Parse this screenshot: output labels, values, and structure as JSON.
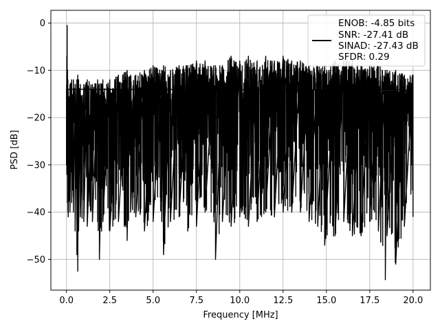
{
  "chart_data": {
    "type": "line",
    "title": "",
    "xlabel": "Frequency [MHz]",
    "ylabel": "PSD [dB]",
    "xlim": [
      -0.9,
      21.0
    ],
    "ylim": [
      -56.5,
      2.7
    ],
    "xticks": [
      0.0,
      2.5,
      5.0,
      7.5,
      10.0,
      12.5,
      15.0,
      17.5,
      20.0
    ],
    "xtick_labels": [
      "0.0",
      "2.5",
      "5.0",
      "7.5",
      "10.0",
      "12.5",
      "15.0",
      "17.5",
      "20.0"
    ],
    "yticks": [
      0,
      -10,
      -20,
      -30,
      -40,
      -50
    ],
    "ytick_labels": [
      "0",
      "−10",
      "−20",
      "−30",
      "−40",
      "−50"
    ],
    "grid": true,
    "legend_position": "top-right",
    "series": [
      {
        "color": "#000000",
        "note_x_range": [
          0,
          20
        ],
        "x": [
          0.0,
          0.02,
          0.04,
          0.06,
          0.08,
          0.1,
          0.2,
          0.3,
          0.4,
          0.5,
          0.6,
          0.65,
          0.7,
          0.8,
          1.0,
          1.2,
          1.5,
          1.8,
          1.9,
          2.1,
          2.5,
          3.0,
          3.5,
          3.7,
          4.0,
          4.5,
          5.0,
          5.5,
          5.6,
          6.0,
          6.5,
          7.0,
          7.5,
          8.0,
          8.5,
          8.6,
          9.0,
          9.5,
          10.0,
          10.5,
          11.0,
          11.5,
          12.0,
          12.5,
          13.0,
          13.5,
          14.0,
          14.5,
          14.9,
          15.5,
          16.0,
          16.5,
          17.0,
          17.5,
          18.0,
          18.4,
          18.5,
          19.0,
          19.5,
          20.0
        ],
        "upper": [
          -14,
          -7,
          -0.5,
          -10,
          -12,
          -14,
          -13,
          -12,
          -12,
          -13,
          -12,
          -11,
          -12,
          -13,
          -13,
          -12,
          -13,
          -12,
          -13,
          -12,
          -12,
          -11,
          -10,
          -11,
          -11,
          -10,
          -9,
          -10,
          -9,
          -10,
          -9,
          -9,
          -8,
          -8,
          -9,
          -9,
          -9,
          -7,
          -8,
          -7,
          -8,
          -7,
          -8,
          -7,
          -8,
          -8,
          -9,
          -9,
          -9,
          -8,
          -8,
          -8,
          -9,
          -9,
          -9,
          -10,
          -10,
          -10,
          -11,
          -11
        ],
        "lower": [
          -30,
          -32,
          -32,
          -38,
          -40,
          -41,
          -40,
          -38,
          -40,
          -44,
          -49,
          -52.5,
          -44,
          -41,
          -42,
          -43,
          -42,
          -42,
          -50,
          -42,
          -44,
          -42,
          -46,
          -40,
          -41,
          -44,
          -42,
          -42,
          -49,
          -42,
          -41,
          -44,
          -43,
          -40,
          -41,
          -50,
          -42,
          -43,
          -41,
          -43,
          -42,
          -40,
          -41,
          -40,
          -40,
          -40,
          -42,
          -43,
          -47,
          -45,
          -42,
          -45,
          -45,
          -42,
          -44,
          -54.3,
          -45,
          -51,
          -43,
          -41
        ]
      }
    ]
  },
  "legend": {
    "entries": [
      "ENOB: -4.85 bits",
      "SNR: -27.41 dB",
      "SINAD: -27.43 dB",
      "SFDR: 0.29"
    ]
  }
}
